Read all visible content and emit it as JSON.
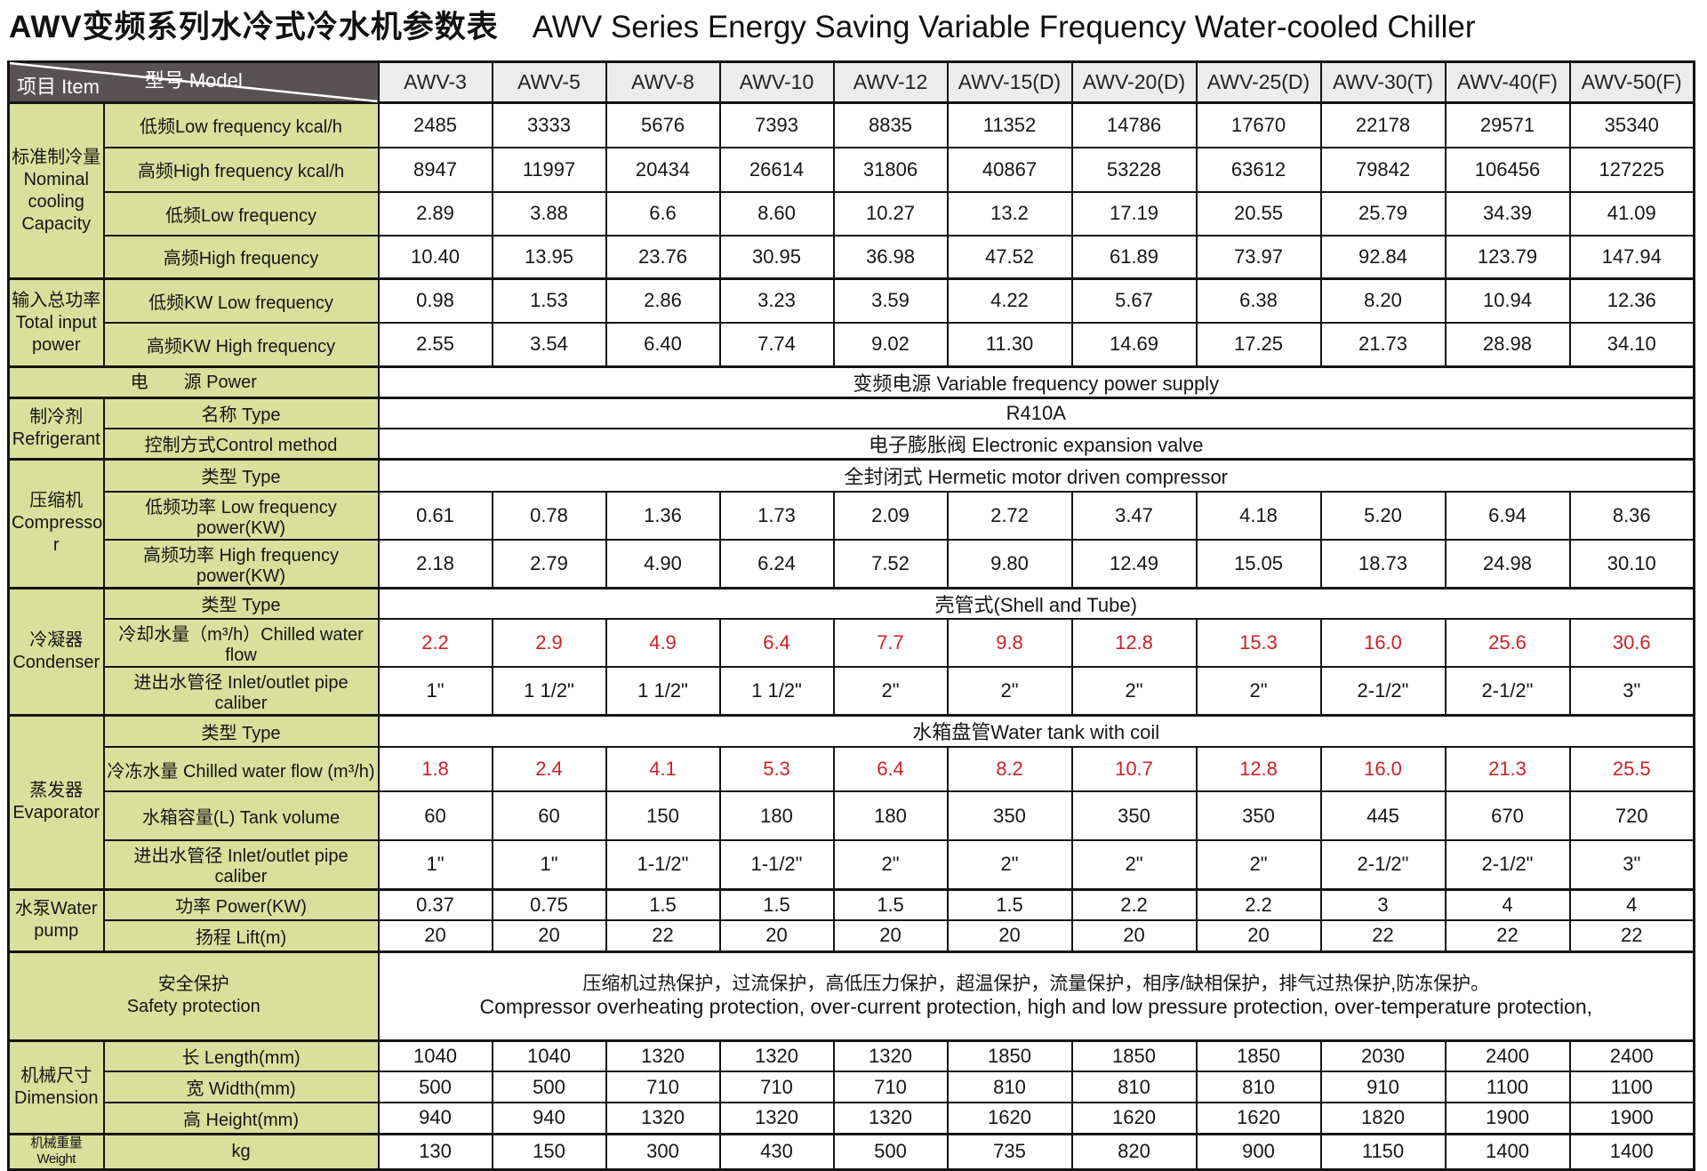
{
  "title": {
    "zh": "AWV变频系列水冷式冷水机参数表",
    "en": "AWV Series Energy Saving Variable Frequency Water-cooled Chiller"
  },
  "colors": {
    "label_bg": "#d8e09c",
    "header_bg": "#585254",
    "model_bg": "#ececec",
    "red": "#cb2128",
    "border": "#141414"
  },
  "table": {
    "corner": {
      "model_label": "型号  Model",
      "item_label": "项目  Item"
    },
    "models": [
      "AWV-3",
      "AWV-5",
      "AWV-8",
      "AWV-10",
      "AWV-12",
      "AWV-15(D)",
      "AWV-20(D)",
      "AWV-25(D)",
      "AWV-30(T)",
      "AWV-40(F)",
      "AWV-50(F)"
    ],
    "rows": [
      {
        "group": {
          "text": "标准制冷量\nNominal\ncooling\nCapacity",
          "span": 4
        },
        "label": "低频Low frequency  kcal/h",
        "values": [
          "2485",
          "3333",
          "5676",
          "7393",
          "8835",
          "11352",
          "14786",
          "17670",
          "22178",
          "29571",
          "35340"
        ]
      },
      {
        "label": "高频High frequency kcal/h",
        "values": [
          "8947",
          "11997",
          "20434",
          "26614",
          "31806",
          "40867",
          "53228",
          "63612",
          "79842",
          "106456",
          "127225"
        ]
      },
      {
        "label": "低频Low frequency",
        "values": [
          "2.89",
          "3.88",
          "6.6",
          "8.60",
          "10.27",
          "13.2",
          "17.19",
          "20.55",
          "25.79",
          "34.39",
          "41.09"
        ]
      },
      {
        "label": "高频High frequency",
        "values": [
          "10.40",
          "13.95",
          "23.76",
          "30.95",
          "36.98",
          "47.52",
          "61.89",
          "73.97",
          "92.84",
          "123.79",
          "147.94"
        ]
      },
      {
        "group": {
          "text": "输入总功率\nTotal input\npower",
          "span": 2
        },
        "label": "低频KW  Low frequency",
        "values": [
          "0.98",
          "1.53",
          "2.86",
          "3.23",
          "3.59",
          "4.22",
          "5.67",
          "6.38",
          "8.20",
          "10.94",
          "12.36"
        ]
      },
      {
        "label": "高频KW   High frequency",
        "values": [
          "2.55",
          "3.54",
          "6.40",
          "7.74",
          "9.02",
          "11.30",
          "14.69",
          "17.25",
          "21.73",
          "28.98",
          "34.10"
        ]
      },
      {
        "wide": "电　　源  Power",
        "span_value": "变频电源 Variable frequency power supply"
      },
      {
        "group": {
          "text": "制冷剂\nRefrigerant",
          "span": 2
        },
        "label": "名称  Type",
        "span_value": "R410A"
      },
      {
        "label": "控制方式Control method",
        "span_value": "电子膨胀阀 Electronic expansion valve"
      },
      {
        "group": {
          "text": "压缩机\nCompresso\nr",
          "span": 3
        },
        "label": "类型 Type",
        "span_value": "全封闭式 Hermetic motor driven compressor"
      },
      {
        "label": "低频功率  Low frequency power(KW)",
        "values": [
          "0.61",
          "0.78",
          "1.36",
          "1.73",
          "2.09",
          "2.72",
          "3.47",
          "4.18",
          "5.20",
          "6.94",
          "8.36"
        ]
      },
      {
        "label": "高频功率 High frequency power(KW)",
        "values": [
          "2.18",
          "2.79",
          "4.90",
          "6.24",
          "7.52",
          "9.80",
          "12.49",
          "15.05",
          "18.73",
          "24.98",
          "30.10"
        ]
      },
      {
        "group": {
          "text": "冷凝器\nCondenser",
          "span": 3
        },
        "label": "类型 Type",
        "span_value": "壳管式(Shell and Tube)"
      },
      {
        "label": "冷却水量（m³/h）Chilled water flow",
        "red": true,
        "values": [
          "2.2",
          "2.9",
          "4.9",
          "6.4",
          "7.7",
          "9.8",
          "12.8",
          "15.3",
          "16.0",
          "25.6",
          "30.6"
        ]
      },
      {
        "label": "进出水管径 Inlet/outlet pipe caliber",
        "values": [
          "1\"",
          "1 1/2\"",
          "1 1/2\"",
          "1 1/2\"",
          "2\"",
          "2\"",
          "2\"",
          "2\"",
          "2-1/2\"",
          "2-1/2\"",
          "3\""
        ]
      },
      {
        "group": {
          "text": "蒸发器\nEvaporator",
          "span": 4
        },
        "label": "类型 Type",
        "span_value": "水箱盘管Water tank with coil"
      },
      {
        "label": "冷冻水量 Chilled water flow (m³/h)",
        "red": true,
        "values": [
          "1.8",
          "2.4",
          "4.1",
          "5.3",
          "6.4",
          "8.2",
          "10.7",
          "12.8",
          "16.0",
          "21.3",
          "25.5"
        ]
      },
      {
        "label": "水箱容量(L) Tank volume",
        "values": [
          "60",
          "60",
          "150",
          "180",
          "180",
          "350",
          "350",
          "350",
          "445",
          "670",
          "720"
        ]
      },
      {
        "label": "进出水管径   Inlet/outlet pipe caliber",
        "values": [
          "1\"",
          "1\"",
          "1-1/2\"",
          "1-1/2\"",
          "2\"",
          "2\"",
          "2\"",
          "2\"",
          "2-1/2\"",
          "2-1/2\"",
          "3\""
        ]
      },
      {
        "group": {
          "text": "水泵Water\npump",
          "span": 2
        },
        "label": "功率  Power(KW)",
        "values": [
          "0.37",
          "0.75",
          "1.5",
          "1.5",
          "1.5",
          "1.5",
          "2.2",
          "2.2",
          "3",
          "4",
          "4"
        ]
      },
      {
        "label": "扬程  Lift(m)",
        "values": [
          "20",
          "20",
          "22",
          "20",
          "20",
          "20",
          "20",
          "20",
          "22",
          "22",
          "22"
        ]
      },
      {
        "wide": "安全保护\nSafety protection",
        "safety": {
          "zh": "压缩机过热保护，过流保护，高低压力保护，超温保护，流量保护，相序/缺相保护，排气过热保护,防冻保护。",
          "en": "Compressor overheating protection, over-current protection, high and low pressure protection, over-temperature protection,"
        }
      },
      {
        "group": {
          "text": "机械尺寸\nDimension",
          "span": 3
        },
        "label": "长  Length(mm)",
        "values": [
          "1040",
          "1040",
          "1320",
          "1320",
          "1320",
          "1850",
          "1850",
          "1850",
          "2030",
          "2400",
          "2400"
        ]
      },
      {
        "label": "宽  Width(mm)",
        "values": [
          "500",
          "500",
          "710",
          "710",
          "710",
          "810",
          "810",
          "810",
          "910",
          "1100",
          "1100"
        ]
      },
      {
        "label": "高  Height(mm)",
        "values": [
          "940",
          "940",
          "1320",
          "1320",
          "1320",
          "1620",
          "1620",
          "1620",
          "1820",
          "1900",
          "1900"
        ]
      },
      {
        "group": {
          "text": "机械重量Weight",
          "span": 1,
          "fit": true
        },
        "label": "kg",
        "values": [
          "130",
          "150",
          "300",
          "430",
          "500",
          "735",
          "820",
          "900",
          "1150",
          "1400",
          "1400"
        ]
      }
    ]
  }
}
